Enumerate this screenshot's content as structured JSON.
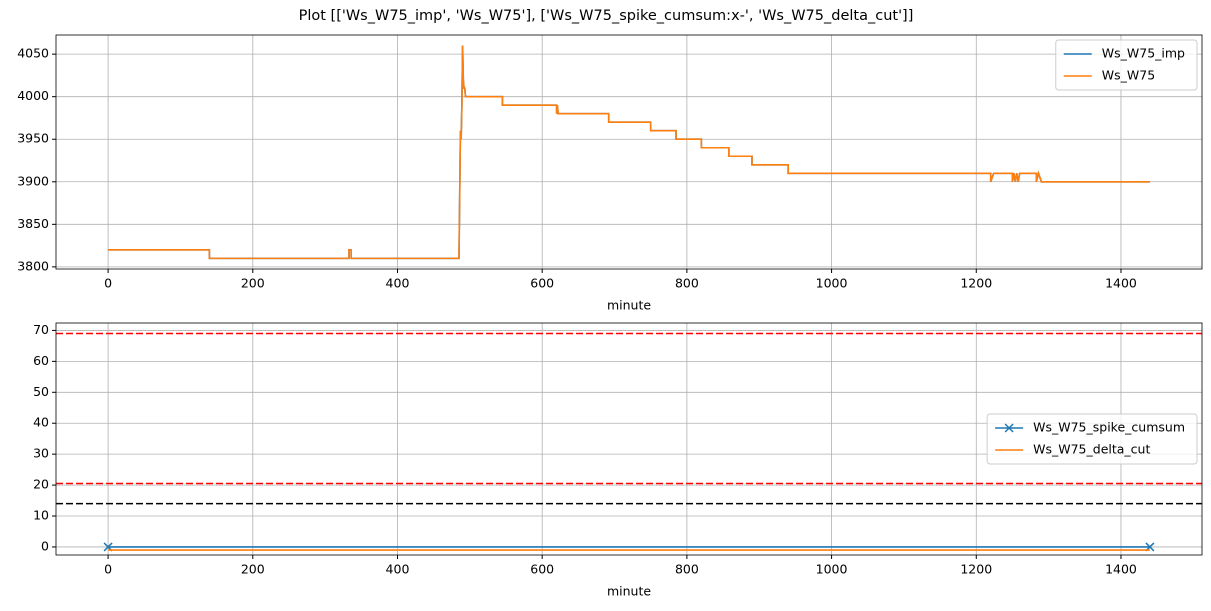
{
  "title": "Plot [['Ws_W75_imp', 'Ws_W75'], ['Ws_W75_spike_cumsum:x-', 'Ws_W75_delta_cut']]",
  "chart_data": [
    {
      "type": "line",
      "xlabel": "minute",
      "grid": true,
      "legend": "upper right",
      "xlim": [
        -72,
        1512
      ],
      "xticks": [
        0,
        200,
        400,
        600,
        800,
        1000,
        1200,
        1400
      ],
      "ylim": [
        3797.5,
        4072.5
      ],
      "yticks": [
        3800,
        3850,
        3900,
        3950,
        4000,
        4050
      ],
      "x": [
        0,
        140,
        140,
        333,
        333,
        336,
        336,
        485,
        487,
        488,
        489,
        490,
        491,
        492,
        493,
        494,
        545,
        545,
        620,
        620,
        621,
        622,
        692,
        692,
        750,
        750,
        785,
        785,
        820,
        820,
        858,
        858,
        890,
        890,
        940,
        940,
        1220,
        1220,
        1224,
        1250,
        1250,
        1252,
        1254,
        1256,
        1258,
        1260,
        1283,
        1283,
        1286,
        1290,
        1440
      ],
      "series": [
        {
          "name": "Ws_W75_imp",
          "color": "#1f77b4",
          "values": [
            3820,
            3820,
            3810,
            3810,
            3820,
            3820,
            3810,
            3810,
            3960,
            3950,
            3990,
            4060,
            4020,
            4010,
            4010,
            4000,
            4000,
            3990,
            3990,
            3980,
            3990,
            3980,
            3980,
            3970,
            3970,
            3960,
            3960,
            3950,
            3950,
            3940,
            3940,
            3930,
            3930,
            3920,
            3920,
            3910,
            3910,
            3900,
            3910,
            3910,
            3900,
            3910,
            3900,
            3910,
            3900,
            3910,
            3910,
            3900,
            3910,
            3900,
            3900
          ]
        },
        {
          "name": "Ws_W75",
          "color": "#ff7f0e",
          "values": [
            3820,
            3820,
            3810,
            3810,
            3820,
            3820,
            3810,
            3810,
            3960,
            3950,
            3990,
            4060,
            4020,
            4010,
            4010,
            4000,
            4000,
            3990,
            3990,
            3980,
            3990,
            3980,
            3980,
            3970,
            3970,
            3960,
            3960,
            3950,
            3950,
            3940,
            3940,
            3930,
            3930,
            3920,
            3920,
            3910,
            3910,
            3900,
            3910,
            3910,
            3900,
            3910,
            3900,
            3910,
            3900,
            3910,
            3910,
            3900,
            3910,
            3900,
            3900
          ]
        }
      ]
    },
    {
      "type": "line",
      "xlabel": "minute",
      "grid": true,
      "legend": "center right",
      "xlim": [
        -72,
        1512
      ],
      "xticks": [
        0,
        200,
        400,
        600,
        800,
        1000,
        1200,
        1400
      ],
      "ylim": [
        -2.6,
        72.4
      ],
      "yticks": [
        0,
        10,
        20,
        30,
        40,
        50,
        60,
        70
      ],
      "x": [
        0,
        1440
      ],
      "series": [
        {
          "name": "Ws_W75_spike_cumsum",
          "color": "#1f77b4",
          "marker": "x",
          "values": [
            0,
            0
          ]
        },
        {
          "name": "Ws_W75_delta_cut",
          "color": "#ff7f0e",
          "values": [
            -1,
            -1
          ]
        }
      ],
      "hlines": [
        {
          "value": 69,
          "color": "#ff0000",
          "linestyle": "dashed"
        },
        {
          "value": 20.5,
          "color": "#ff0000",
          "linestyle": "dashed"
        },
        {
          "value": 14,
          "color": "#000000",
          "linestyle": "dashed"
        }
      ]
    }
  ]
}
